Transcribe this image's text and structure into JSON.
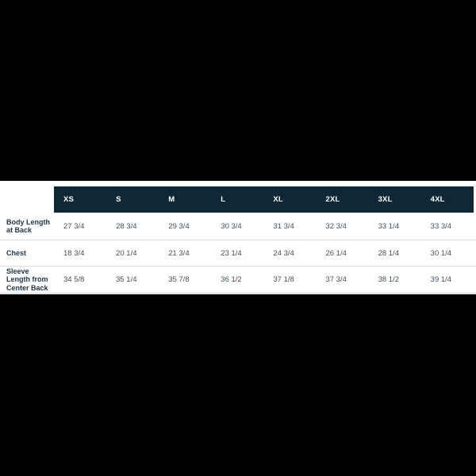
{
  "colors": {
    "header_bg": "#0e2838",
    "label_text": "#243746",
    "value_text": "#42505c",
    "separator": "#dadada",
    "sheet_bg": "#ffffff",
    "letterbox": "#000000"
  },
  "chart_data": {
    "type": "table",
    "title": "",
    "columns": [
      "XS",
      "S",
      "M",
      "L",
      "XL",
      "2XL",
      "3XL",
      "4XL"
    ],
    "rows": [
      {
        "label": "Body Length at Back",
        "values": [
          "27 3/4",
          "28 3/4",
          "29 3/4",
          "30 3/4",
          "31 3/4",
          "32 3/4",
          "33 1/4",
          "33 3/4"
        ]
      },
      {
        "label": "Chest",
        "values": [
          "18 3/4",
          "20 1/4",
          "21 3/4",
          "23 1/4",
          "24 3/4",
          "26 1/4",
          "28 1/4",
          "30 1/4"
        ]
      },
      {
        "label": "Sleeve Length from Center Back",
        "values": [
          "34 5/8",
          "35 1/4",
          "35 7/8",
          "36 1/2",
          "37 1/8",
          "37 3/4",
          "38 1/2",
          "39 1/4"
        ]
      }
    ]
  }
}
